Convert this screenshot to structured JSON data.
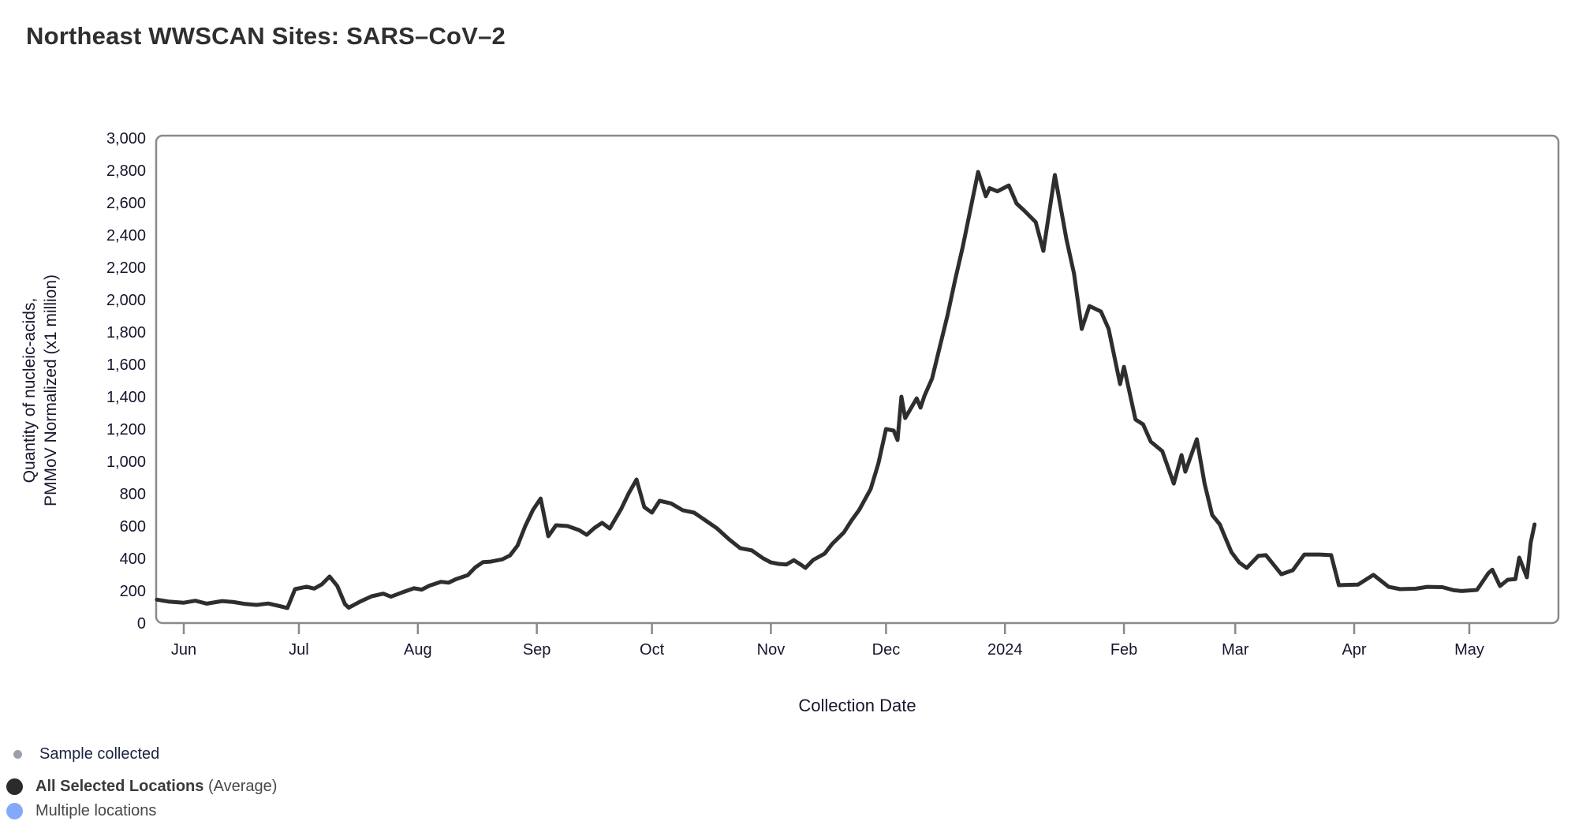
{
  "title": "Northeast WWSCAN Sites: SARS–CoV–2",
  "chart_data": {
    "type": "line",
    "title": "Northeast WWSCAN Sites: SARS–CoV–2",
    "xlabel": "Collection Date",
    "ylabel_line1": "Quantity of nucleic-acids,",
    "ylabel_line2": "PMMoV Normalized (x1 million)",
    "ylim": [
      0,
      3000
    ],
    "grid": false,
    "legend_position": "bottom-left",
    "line_color": "#2e2e2e",
    "axis_color": "#8a8a8a",
    "yticks": [
      {
        "value": 0,
        "label": "0"
      },
      {
        "value": 200,
        "label": "200"
      },
      {
        "value": 400,
        "label": "400"
      },
      {
        "value": 600,
        "label": "600"
      },
      {
        "value": 800,
        "label": "800"
      },
      {
        "value": 1000,
        "label": "1,000"
      },
      {
        "value": 1200,
        "label": "1,200"
      },
      {
        "value": 1400,
        "label": "1,400"
      },
      {
        "value": 1600,
        "label": "1,600"
      },
      {
        "value": 1800,
        "label": "1,800"
      },
      {
        "value": 2000,
        "label": "2,000"
      },
      {
        "value": 2200,
        "label": "2,200"
      },
      {
        "value": 2400,
        "label": "2,400"
      },
      {
        "value": 2600,
        "label": "2,600"
      },
      {
        "value": 2800,
        "label": "2,800"
      },
      {
        "value": 3000,
        "label": "3,000"
      }
    ],
    "xticks": [
      {
        "date": "2023-06-01",
        "label": "Jun"
      },
      {
        "date": "2023-07-01",
        "label": "Jul"
      },
      {
        "date": "2023-08-01",
        "label": "Aug"
      },
      {
        "date": "2023-09-01",
        "label": "Sep"
      },
      {
        "date": "2023-10-01",
        "label": "Oct"
      },
      {
        "date": "2023-11-01",
        "label": "Nov"
      },
      {
        "date": "2023-12-01",
        "label": "Dec"
      },
      {
        "date": "2024-01-01",
        "label": "2024"
      },
      {
        "date": "2024-02-01",
        "label": "Feb"
      },
      {
        "date": "2024-03-01",
        "label": "Mar"
      },
      {
        "date": "2024-04-01",
        "label": "Apr"
      },
      {
        "date": "2024-05-01",
        "label": "May"
      }
    ],
    "series": [
      {
        "name": "All Selected Locations (Average)",
        "color": "#2e2e2e",
        "points": [
          [
            "2023-05-25",
            145
          ],
          [
            "2023-05-28",
            133
          ],
          [
            "2023-06-01",
            126
          ],
          [
            "2023-06-04",
            138
          ],
          [
            "2023-06-07",
            120
          ],
          [
            "2023-06-11",
            136
          ],
          [
            "2023-06-14",
            130
          ],
          [
            "2023-06-17",
            118
          ],
          [
            "2023-06-20",
            112
          ],
          [
            "2023-06-23",
            121
          ],
          [
            "2023-06-26",
            105
          ],
          [
            "2023-06-28",
            93
          ],
          [
            "2023-06-30",
            210
          ],
          [
            "2023-07-03",
            225
          ],
          [
            "2023-07-05",
            213
          ],
          [
            "2023-07-07",
            240
          ],
          [
            "2023-07-09",
            288
          ],
          [
            "2023-07-11",
            230
          ],
          [
            "2023-07-13",
            117
          ],
          [
            "2023-07-14",
            95
          ],
          [
            "2023-07-17",
            133
          ],
          [
            "2023-07-20",
            166
          ],
          [
            "2023-07-23",
            182
          ],
          [
            "2023-07-25",
            163
          ],
          [
            "2023-07-28",
            190
          ],
          [
            "2023-07-31",
            215
          ],
          [
            "2023-08-02",
            207
          ],
          [
            "2023-08-04",
            231
          ],
          [
            "2023-08-07",
            255
          ],
          [
            "2023-08-09",
            250
          ],
          [
            "2023-08-11",
            272
          ],
          [
            "2023-08-14",
            296
          ],
          [
            "2023-08-16",
            345
          ],
          [
            "2023-08-18",
            377
          ],
          [
            "2023-08-20",
            380
          ],
          [
            "2023-08-23",
            394
          ],
          [
            "2023-08-25",
            418
          ],
          [
            "2023-08-27",
            480
          ],
          [
            "2023-08-29",
            600
          ],
          [
            "2023-08-31",
            700
          ],
          [
            "2023-09-02",
            770
          ],
          [
            "2023-09-04",
            537
          ],
          [
            "2023-09-06",
            605
          ],
          [
            "2023-09-09",
            600
          ],
          [
            "2023-09-12",
            575
          ],
          [
            "2023-09-14",
            546
          ],
          [
            "2023-09-16",
            588
          ],
          [
            "2023-09-18",
            620
          ],
          [
            "2023-09-20",
            585
          ],
          [
            "2023-09-23",
            707
          ],
          [
            "2023-09-25",
            805
          ],
          [
            "2023-09-27",
            888
          ],
          [
            "2023-09-29",
            717
          ],
          [
            "2023-10-01",
            683
          ],
          [
            "2023-10-03",
            756
          ],
          [
            "2023-10-06",
            740
          ],
          [
            "2023-10-09",
            698
          ],
          [
            "2023-10-12",
            683
          ],
          [
            "2023-10-15",
            634
          ],
          [
            "2023-10-18",
            585
          ],
          [
            "2023-10-21",
            520
          ],
          [
            "2023-10-24",
            463
          ],
          [
            "2023-10-27",
            450
          ],
          [
            "2023-10-30",
            400
          ],
          [
            "2023-11-01",
            375
          ],
          [
            "2023-11-03",
            366
          ],
          [
            "2023-11-05",
            362
          ],
          [
            "2023-11-07",
            389
          ],
          [
            "2023-11-09",
            358
          ],
          [
            "2023-11-10",
            341
          ],
          [
            "2023-11-12",
            390
          ],
          [
            "2023-11-15",
            430
          ],
          [
            "2023-11-17",
            490
          ],
          [
            "2023-11-20",
            560
          ],
          [
            "2023-11-22",
            634
          ],
          [
            "2023-11-24",
            700
          ],
          [
            "2023-11-27",
            830
          ],
          [
            "2023-11-29",
            987
          ],
          [
            "2023-12-01",
            1200
          ],
          [
            "2023-12-03",
            1190
          ],
          [
            "2023-12-04",
            1132
          ],
          [
            "2023-12-05",
            1400
          ],
          [
            "2023-12-06",
            1268
          ],
          [
            "2023-12-09",
            1390
          ],
          [
            "2023-12-10",
            1332
          ],
          [
            "2023-12-11",
            1405
          ],
          [
            "2023-12-13",
            1512
          ],
          [
            "2023-12-15",
            1707
          ],
          [
            "2023-12-17",
            1902
          ],
          [
            "2023-12-19",
            2122
          ],
          [
            "2023-12-21",
            2327
          ],
          [
            "2023-12-23",
            2560
          ],
          [
            "2023-12-25",
            2790
          ],
          [
            "2023-12-27",
            2640
          ],
          [
            "2023-12-28",
            2690
          ],
          [
            "2023-12-30",
            2670
          ],
          [
            "2024-01-02",
            2707
          ],
          [
            "2024-01-04",
            2595
          ],
          [
            "2024-01-06",
            2551
          ],
          [
            "2024-01-09",
            2480
          ],
          [
            "2024-01-11",
            2302
          ],
          [
            "2024-01-14",
            2771
          ],
          [
            "2024-01-17",
            2375
          ],
          [
            "2024-01-19",
            2161
          ],
          [
            "2024-01-21",
            1819
          ],
          [
            "2024-01-23",
            1961
          ],
          [
            "2024-01-26",
            1927
          ],
          [
            "2024-01-28",
            1820
          ],
          [
            "2024-01-31",
            1478
          ],
          [
            "2024-02-01",
            1585
          ],
          [
            "2024-02-04",
            1259
          ],
          [
            "2024-02-06",
            1229
          ],
          [
            "2024-02-08",
            1122
          ],
          [
            "2024-02-11",
            1063
          ],
          [
            "2024-02-14",
            863
          ],
          [
            "2024-02-16",
            1039
          ],
          [
            "2024-02-17",
            936
          ],
          [
            "2024-02-20",
            1137
          ],
          [
            "2024-02-22",
            863
          ],
          [
            "2024-02-24",
            668
          ],
          [
            "2024-02-26",
            610
          ],
          [
            "2024-02-27",
            551
          ],
          [
            "2024-02-29",
            439
          ],
          [
            "2024-03-02",
            375
          ],
          [
            "2024-03-04",
            341
          ],
          [
            "2024-03-07",
            415
          ],
          [
            "2024-03-09",
            420
          ],
          [
            "2024-03-13",
            302
          ],
          [
            "2024-03-16",
            327
          ],
          [
            "2024-03-19",
            424
          ],
          [
            "2024-03-23",
            424
          ],
          [
            "2024-03-26",
            420
          ],
          [
            "2024-03-28",
            234
          ],
          [
            "2024-03-30",
            236
          ],
          [
            "2024-04-02",
            238
          ],
          [
            "2024-04-06",
            298
          ],
          [
            "2024-04-10",
            224
          ],
          [
            "2024-04-13",
            210
          ],
          [
            "2024-04-17",
            212
          ],
          [
            "2024-04-20",
            224
          ],
          [
            "2024-04-24",
            222
          ],
          [
            "2024-04-27",
            203
          ],
          [
            "2024-04-29",
            198
          ],
          [
            "2024-05-03",
            205
          ],
          [
            "2024-05-06",
            310
          ],
          [
            "2024-05-07",
            330
          ],
          [
            "2024-05-09",
            229
          ],
          [
            "2024-05-11",
            268
          ],
          [
            "2024-05-13",
            272
          ],
          [
            "2024-05-14",
            405
          ],
          [
            "2024-05-16",
            283
          ],
          [
            "2024-05-17",
            500
          ],
          [
            "2024-05-18",
            610
          ]
        ]
      }
    ]
  },
  "legend": {
    "items": [
      {
        "label": "Sample collected",
        "color": "#9aa0ab"
      },
      {
        "label": "All Selected Locations",
        "suffix": " (Average)",
        "color": "#2b2b2b"
      },
      {
        "label": "Multiple locations",
        "color": "#84a9f9"
      }
    ]
  }
}
